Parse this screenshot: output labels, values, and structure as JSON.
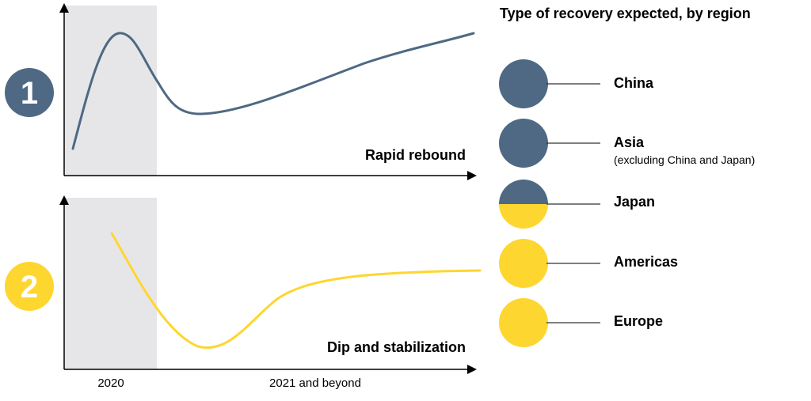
{
  "colors": {
    "slate": "#4f6984",
    "yellow": "#fed630",
    "shade": "#e6e6e8",
    "axis": "#000000",
    "connector": "#333333"
  },
  "panels": [
    {
      "badge": "1",
      "label": "Rapid rebound",
      "color": "#4f6984"
    },
    {
      "badge": "2",
      "label": "Dip and stabilization",
      "color": "#fed630"
    }
  ],
  "x_axis": {
    "shaded_label": "2020",
    "rest_label": "2021 and beyond"
  },
  "legend": {
    "title": "Type of recovery expected, by region",
    "regions": [
      {
        "name": "China",
        "note": "",
        "fill": "full-slate"
      },
      {
        "name": "Asia",
        "note": "(excluding China and Japan)",
        "fill": "full-slate"
      },
      {
        "name": "Japan",
        "note": "",
        "fill": "half-slate-half-yellow"
      },
      {
        "name": "Americas",
        "note": "",
        "fill": "full-yellow"
      },
      {
        "name": "Europe",
        "note": "",
        "fill": "full-yellow"
      }
    ]
  }
}
